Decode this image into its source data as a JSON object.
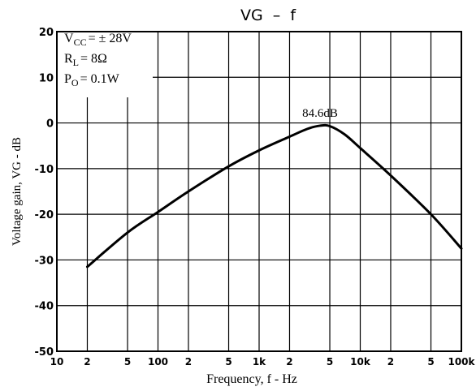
{
  "chart_data": {
    "type": "line",
    "title": "VG  –  f",
    "xlabel": "Frequency, f - Hz",
    "ylabel": "Voltage gain, VG - dB",
    "x_scale": "log",
    "xlim": [
      10,
      100000
    ],
    "ylim": [
      -50,
      20
    ],
    "y_ticks": [
      20,
      10,
      0,
      -10,
      -20,
      -30,
      -40,
      -50
    ],
    "y_tick_labels": [
      "20",
      "10",
      "0",
      "-10",
      "-20",
      "-30",
      "-40",
      "-50"
    ],
    "x_ticks": [
      {
        "x": 10,
        "label": "10"
      },
      {
        "x": 20,
        "label": "2"
      },
      {
        "x": 50,
        "label": "5"
      },
      {
        "x": 100,
        "label": "100"
      },
      {
        "x": 200,
        "label": "2"
      },
      {
        "x": 500,
        "label": "5"
      },
      {
        "x": 1000,
        "label": "1k"
      },
      {
        "x": 2000,
        "label": "2"
      },
      {
        "x": 5000,
        "label": "5"
      },
      {
        "x": 10000,
        "label": "10k"
      },
      {
        "x": 20000,
        "label": "2"
      },
      {
        "x": 50000,
        "label": "5"
      },
      {
        "x": 100000,
        "label": "100k"
      }
    ],
    "grid": true,
    "series": [
      {
        "color": "#000000",
        "points": [
          {
            "x": 20,
            "y": -31.5
          },
          {
            "x": 50,
            "y": -24
          },
          {
            "x": 100,
            "y": -19.5
          },
          {
            "x": 200,
            "y": -15
          },
          {
            "x": 500,
            "y": -9.5
          },
          {
            "x": 1000,
            "y": -6
          },
          {
            "x": 2000,
            "y": -3
          },
          {
            "x": 3000,
            "y": -1.3
          },
          {
            "x": 4000,
            "y": -0.6
          },
          {
            "x": 5000,
            "y": -0.7
          },
          {
            "x": 7000,
            "y": -2.5
          },
          {
            "x": 10000,
            "y": -5.5
          },
          {
            "x": 20000,
            "y": -11.5
          },
          {
            "x": 50000,
            "y": -20
          },
          {
            "x": 100000,
            "y": -27.5
          }
        ]
      }
    ],
    "peak_annotation": {
      "text": "84.6dB",
      "x": 4000,
      "y": -0.6
    },
    "conditions": [
      {
        "sym": "V",
        "sub": "CC",
        "val": "= ± 28V"
      },
      {
        "sym": "R",
        "sub": "L",
        "val": "= 8Ω"
      },
      {
        "sym": "P",
        "sub": "O",
        "val": "= 0.1W"
      }
    ]
  }
}
